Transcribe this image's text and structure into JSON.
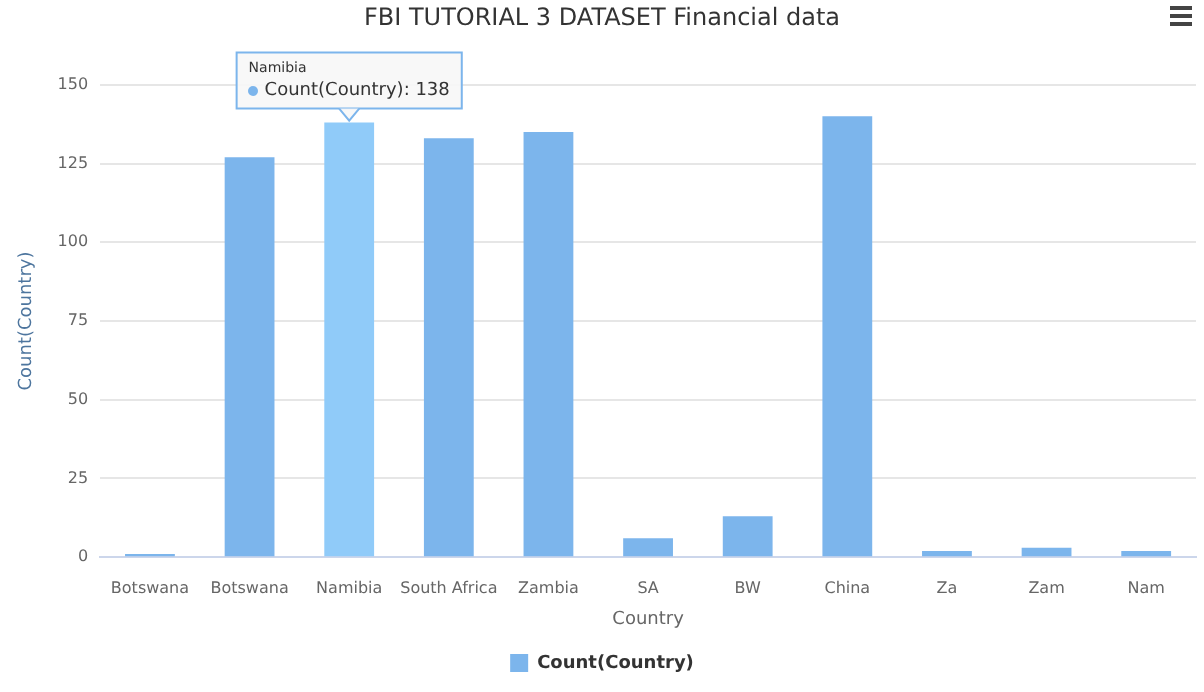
{
  "chart_data": {
    "type": "bar",
    "title": "FBI TUTORIAL 3 DATASET Financial data",
    "xlabel": "Country",
    "ylabel": "Count(Country)",
    "categories": [
      "Botswana",
      "Botswana",
      "Namibia",
      "South Africa",
      "Zambia",
      "SA",
      "BW",
      "China",
      "Za",
      "Zam",
      "Nam"
    ],
    "series": [
      {
        "name": "Count(Country)",
        "color": "#7cb5ec",
        "colors": [
          "#7cb5ec",
          "#7cb5ec",
          "#90cbf9",
          "#7cb5ec",
          "#7cb5ec",
          "#7cb5ec",
          "#7cb5ec",
          "#7cb5ec",
          "#7cb5ec",
          "#7cb5ec",
          "#7cb5ec"
        ],
        "values": [
          1,
          127,
          138,
          133,
          135,
          6,
          13,
          140,
          2,
          3,
          2
        ]
      }
    ],
    "ylim": [
      0,
      150
    ],
    "yticks": [
      0,
      25,
      50,
      75,
      100,
      125,
      150
    ],
    "grid": "y",
    "legend": "bottom",
    "annotations": [
      {
        "text": "Namibia\nCount(Country): 138",
        "x": "Namibia",
        "y": 138
      }
    ]
  }
}
